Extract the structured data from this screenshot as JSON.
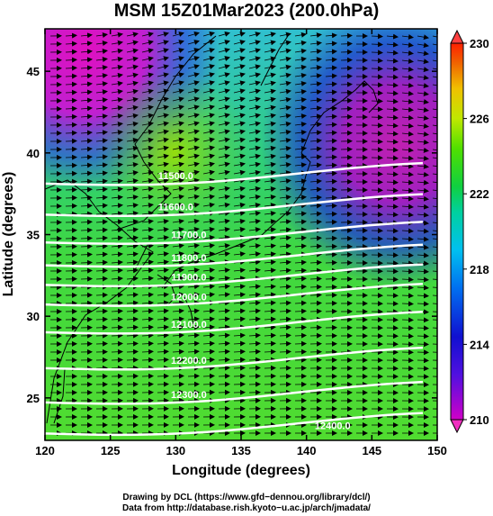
{
  "title": "MSM 15Z01Mar2023 (200.0hPa)",
  "x_axis": {
    "label": "Longitude (degrees)",
    "ticks": [
      "120",
      "125",
      "130",
      "135",
      "140",
      "145",
      "150"
    ],
    "range": [
      120,
      150
    ]
  },
  "y_axis": {
    "label": "Latitude  (degrees)",
    "ticks": [
      "25",
      "30",
      "35",
      "40",
      "45"
    ],
    "range": [
      22.4,
      47.6
    ]
  },
  "colorbar": {
    "ticks": [
      "210",
      "214",
      "218",
      "222",
      "226",
      "230"
    ],
    "range": [
      210,
      230
    ],
    "colors": [
      "#d000c8",
      "#1010d0",
      "#00a0f0",
      "#00d0c0",
      "#20d020",
      "#80e000",
      "#e0e000",
      "#f08000",
      "#ff2000"
    ]
  },
  "contours": {
    "color": "#ffffff",
    "lines": [
      {
        "label": "11500.0",
        "lon": 130,
        "lat": 38.6
      },
      {
        "label": "11600.0",
        "lon": 130,
        "lat": 36.7
      },
      {
        "label": "11700.0",
        "lon": 131,
        "lat": 35.0
      },
      {
        "label": "11800.0",
        "lon": 131,
        "lat": 33.6
      },
      {
        "label": "11900.0",
        "lon": 131,
        "lat": 32.4
      },
      {
        "label": "12000.0",
        "lon": 131,
        "lat": 31.2
      },
      {
        "label": "12100.0",
        "lon": 131,
        "lat": 29.5
      },
      {
        "label": "12200.0",
        "lon": 131,
        "lat": 27.3
      },
      {
        "label": "12300.0",
        "lon": 131,
        "lat": 25.2
      },
      {
        "label": "12400.0",
        "lon": 142,
        "lat": 23.3
      }
    ]
  },
  "credits": {
    "line1": "Drawing by DCL (https://www.gfd−dennou.org/library/dcl/)",
    "line2": "Data from http://database.rish.kyoto−u.ac.jp/arch/jmadata/"
  }
}
